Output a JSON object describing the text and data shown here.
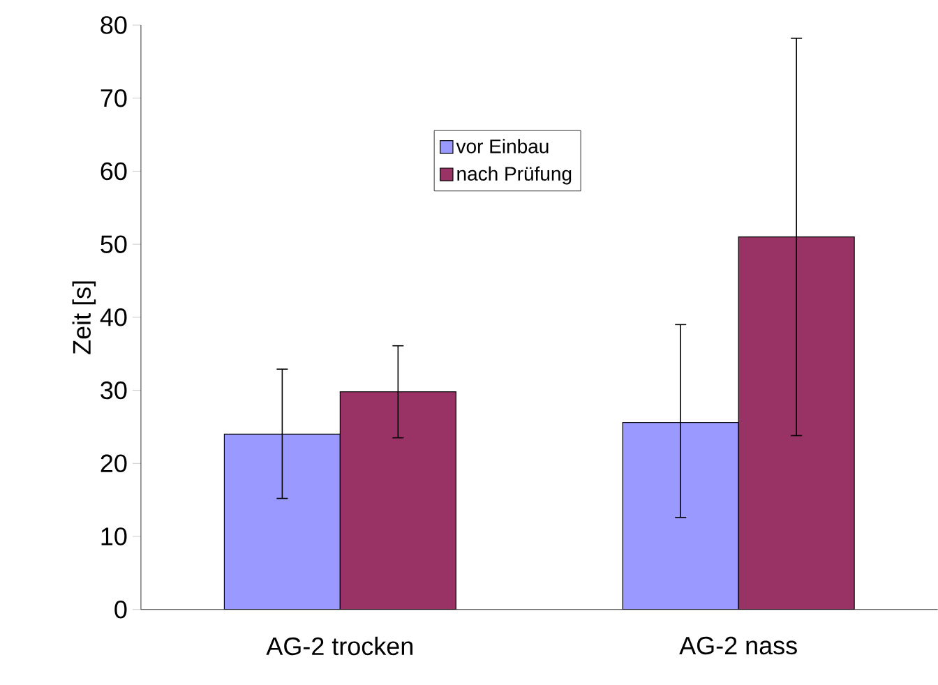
{
  "chart_data": {
    "type": "bar",
    "ylabel": "Zeit [s]",
    "categories": [
      "AG-2 trocken",
      "AG-2 nass"
    ],
    "series": [
      {
        "name": "vor Einbau",
        "color": "#9999ff",
        "values": [
          24,
          25.6
        ],
        "errors": [
          [
            15.2,
            32.9
          ],
          [
            12.6,
            39
          ]
        ]
      },
      {
        "name": "nach Prüfung",
        "color": "#993366",
        "values": [
          29.8,
          51
        ],
        "errors": [
          [
            23.5,
            36.1
          ],
          [
            23.8,
            78.2
          ]
        ]
      }
    ],
    "ylim": [
      0,
      80
    ],
    "yticks": [
      0,
      10,
      20,
      30,
      40,
      50,
      60,
      70,
      80
    ],
    "legend": "top"
  }
}
